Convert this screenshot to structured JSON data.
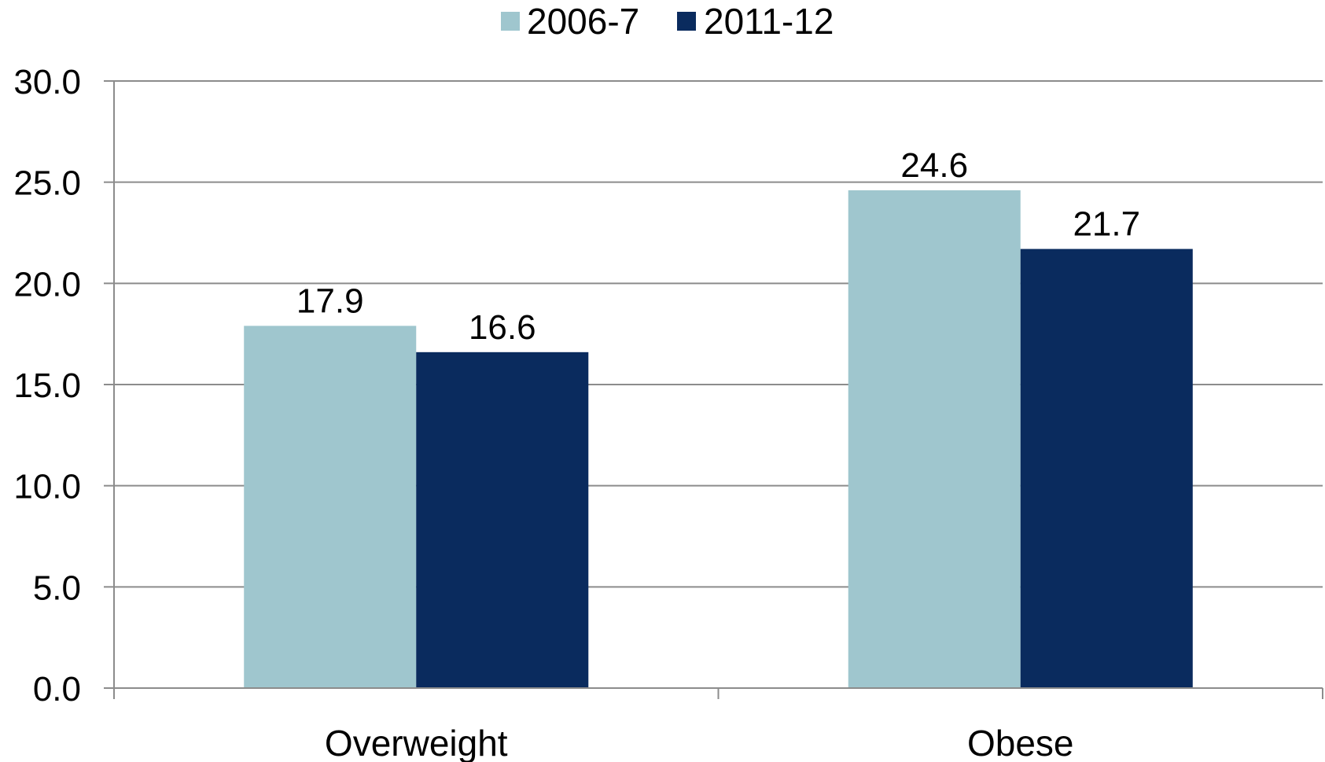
{
  "chart_data": {
    "type": "bar",
    "categories": [
      "Overweight",
      "Obese"
    ],
    "series": [
      {
        "name": "2006-7",
        "values": [
          17.9,
          24.6
        ],
        "color": "#9fc6ce"
      },
      {
        "name": "2011-12",
        "values": [
          16.6,
          21.7
        ],
        "color": "#0a2b5e"
      }
    ],
    "data_labels": [
      [
        "17.9",
        "24.6"
      ],
      [
        "16.6",
        "21.7"
      ]
    ],
    "yticks": [
      "0.0",
      "5.0",
      "10.0",
      "15.0",
      "20.0",
      "25.0",
      "30.0"
    ],
    "ylim": [
      0,
      30
    ],
    "grid": true,
    "legend_position": "top-center",
    "title": "",
    "xlabel": "",
    "ylabel": ""
  }
}
